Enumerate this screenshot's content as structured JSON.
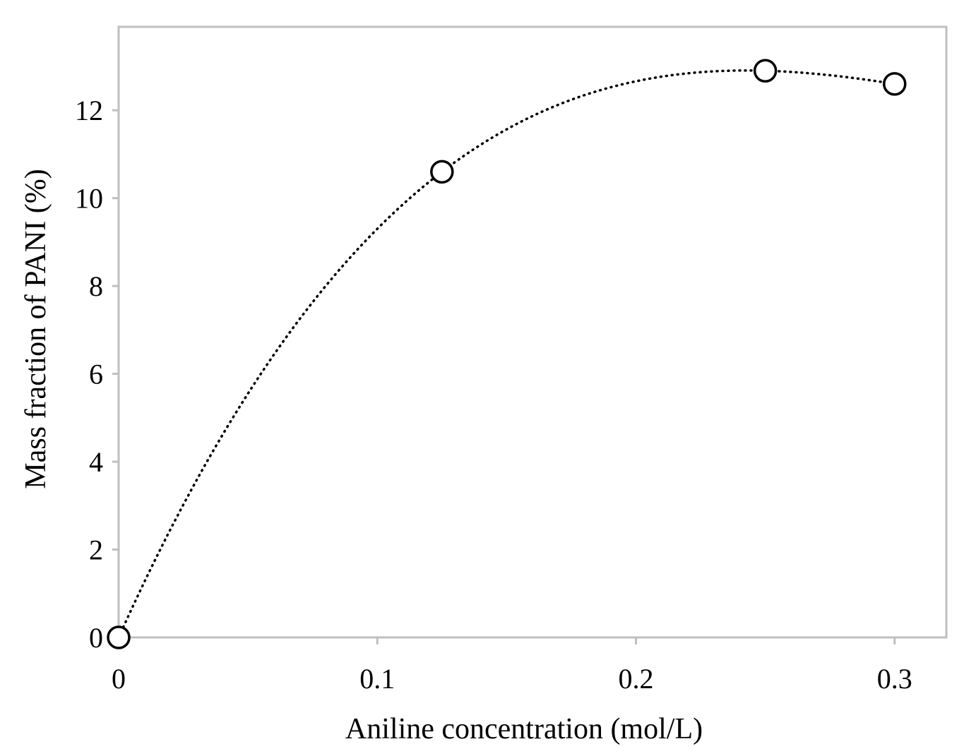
{
  "chart_data": {
    "type": "scatter",
    "title": "",
    "xlabel": "Aniline concentration (mol/L)",
    "ylabel": "Mass fraction of PANI (%)",
    "xlim": [
      0,
      0.32
    ],
    "ylim": [
      0,
      13.9
    ],
    "xticks": [
      0,
      0.1,
      0.2,
      0.3
    ],
    "yticks": [
      0,
      2,
      4,
      6,
      8,
      10,
      12
    ],
    "xtick_labels": [
      "0",
      "0.1",
      "0.2",
      "0.3"
    ],
    "ytick_labels": [
      "0",
      "2",
      "4",
      "6",
      "8",
      "10",
      "12"
    ],
    "grid": false,
    "legend": "none",
    "series": [
      {
        "x": [
          0,
          0.125,
          0.25,
          0.3
        ],
        "y": [
          0,
          10.6,
          12.9,
          12.6
        ],
        "marker": "open-circle",
        "trendline": "polynomial-dotted"
      }
    ],
    "colors": {
      "frame": "#bfbfbf",
      "marker_edge": "#000000",
      "marker_fill": "#ffffff",
      "trendline": "#000000"
    }
  }
}
